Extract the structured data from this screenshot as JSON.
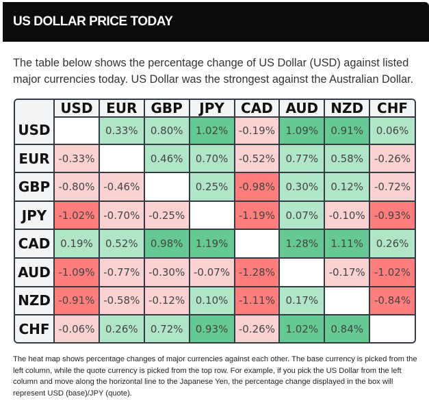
{
  "header": {
    "title": "US DOLLAR PRICE TODAY"
  },
  "intro": "The table below shows the percentage change of US Dollar (USD) against listed major currencies today. US Dollar was the strongest against the Australian Dollar.",
  "colors": {
    "positive_strong": "#64c992",
    "positive_light": "#b0e6c7",
    "negative_strong": "#fe7d7d",
    "negative_light": "#fad2d2",
    "header_bg": "#0c0c0c"
  },
  "heatmap": {
    "currencies": [
      "USD",
      "EUR",
      "GBP",
      "JPY",
      "CAD",
      "AUD",
      "NZD",
      "CHF"
    ],
    "rows": [
      {
        "base": "USD",
        "values": [
          null,
          "0.33%",
          "0.80%",
          "1.02%",
          "-0.19%",
          "1.09%",
          "0.91%",
          "0.06%"
        ]
      },
      {
        "base": "EUR",
        "values": [
          "-0.33%",
          null,
          "0.46%",
          "0.70%",
          "-0.52%",
          "0.77%",
          "0.58%",
          "-0.26%"
        ]
      },
      {
        "base": "GBP",
        "values": [
          "-0.80%",
          "-0.46%",
          null,
          "0.25%",
          "-0.98%",
          "0.30%",
          "0.12%",
          "-0.72%"
        ]
      },
      {
        "base": "JPY",
        "values": [
          "-1.02%",
          "-0.70%",
          "-0.25%",
          null,
          "-1.19%",
          "0.07%",
          "-0.10%",
          "-0.93%"
        ]
      },
      {
        "base": "CAD",
        "values": [
          "0.19%",
          "0.52%",
          "0.98%",
          "1.19%",
          null,
          "1.28%",
          "1.11%",
          "0.26%"
        ]
      },
      {
        "base": "AUD",
        "values": [
          "-1.09%",
          "-0.77%",
          "-0.30%",
          "-0.07%",
          "-1.28%",
          null,
          "-0.17%",
          "-1.02%"
        ]
      },
      {
        "base": "NZD",
        "values": [
          "-0.91%",
          "-0.58%",
          "-0.12%",
          "0.10%",
          "-1.11%",
          "0.17%",
          null,
          "-0.84%"
        ]
      },
      {
        "base": "CHF",
        "values": [
          "-0.06%",
          "0.26%",
          "0.72%",
          "0.93%",
          "-0.26%",
          "1.02%",
          "0.84%",
          null
        ]
      }
    ]
  },
  "note": "The heat map shows percentage changes of major currencies against each other. The base currency is picked from the left column, while the quote currency is picked from the top row. For example, if you pick the US Dollar from the left column and move along the horizontal line to the Japanese Yen, the percentage change displayed in the box will represent USD (base)/JPY (quote)."
}
